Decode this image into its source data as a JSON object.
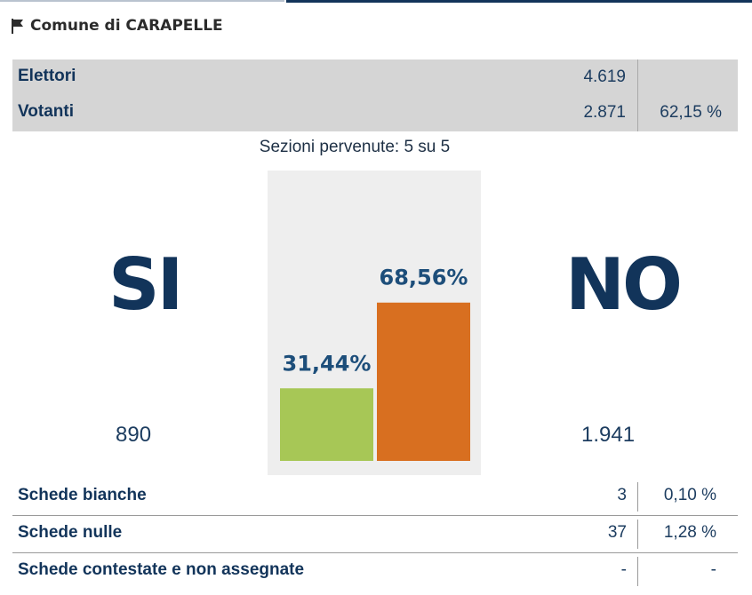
{
  "header": {
    "title": "Comune di CARAPELLE",
    "icon": "flag-icon"
  },
  "electors": {
    "rows": [
      {
        "label": "Elettori",
        "value": "4.619",
        "percent": ""
      },
      {
        "label": "Votanti",
        "value": "2.871",
        "percent": "62,15 %"
      }
    ]
  },
  "sections_text": "Sezioni pervenute: 5 su 5",
  "results": {
    "yes_label": "SI",
    "no_label": "NO",
    "yes_count": "890",
    "no_count": "1.941"
  },
  "chart_data": {
    "type": "bar",
    "categories": [
      "SI",
      "NO"
    ],
    "values": [
      31.44,
      68.56
    ],
    "value_labels": [
      "31,44%",
      "68,56%"
    ],
    "colors": [
      "#a7c756",
      "#d86f20"
    ],
    "ylim": [
      0,
      100
    ]
  },
  "summary": {
    "rows": [
      {
        "label": "Schede bianche",
        "value": "3",
        "percent": "0,10 %"
      },
      {
        "label": "Schede nulle",
        "value": "37",
        "percent": "1,28 %"
      },
      {
        "label": "Schede contestate e non assegnate",
        "value": "-",
        "percent": "-"
      }
    ]
  }
}
